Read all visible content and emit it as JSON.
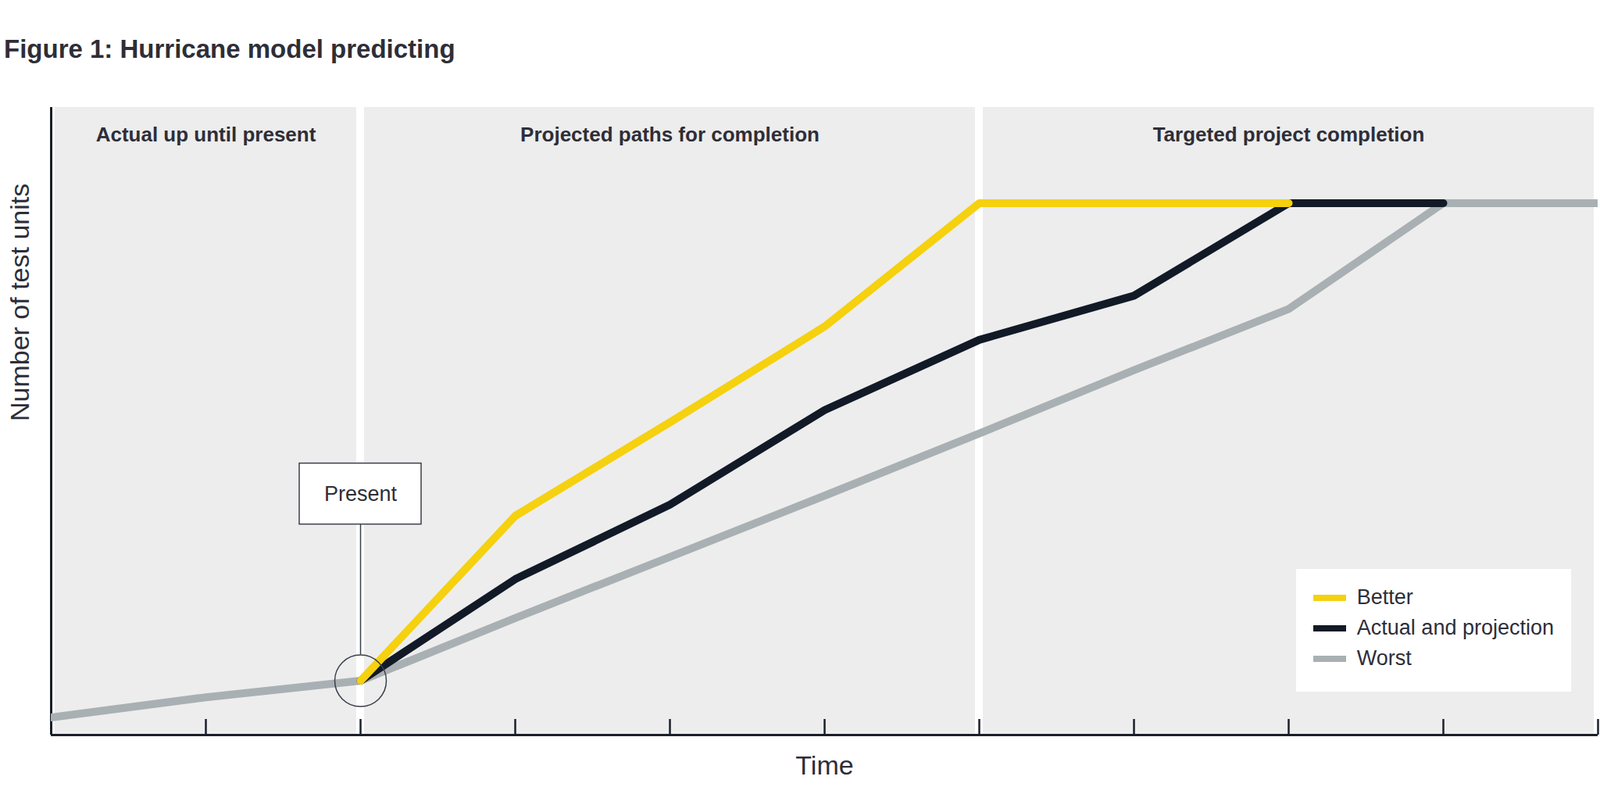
{
  "chart_data": {
    "type": "line",
    "title": "Figure 1: Hurricane model predicting",
    "x_label": "Time",
    "y_label": "Number of test units",
    "x": [
      0,
      1,
      2,
      3,
      4,
      5,
      6,
      7,
      8,
      9,
      10
    ],
    "series": [
      {
        "name": "Better",
        "color": "#f5d10f",
        "values": [
          null,
          null,
          10.2,
          41.2,
          58.8,
          76.8,
          100,
          100,
          100,
          null,
          null
        ]
      },
      {
        "name": "Actual and projection",
        "color": "#111a26",
        "values": [
          null,
          null,
          10.2,
          29.3,
          43.3,
          61.1,
          74.3,
          82.6,
          100,
          100,
          null
        ]
      },
      {
        "name": "Worst",
        "color": "#a9b0b3",
        "values": [
          3.3,
          7.1,
          10.2,
          22.0,
          33.5,
          45.0,
          56.7,
          68.6,
          80.1,
          100,
          100
        ]
      }
    ],
    "xlim": [
      0,
      10
    ],
    "xticks": [
      0,
      1,
      2,
      3,
      4,
      5,
      6,
      7,
      8,
      9,
      10
    ],
    "ylim": [
      0,
      118
    ],
    "yticks": [],
    "tick_labels": false,
    "grid": false,
    "legend": "bottom-right",
    "regions": [
      {
        "label": "Actual up until present",
        "start": 0,
        "end": 2
      },
      {
        "label": "Projected paths for completion",
        "start": 2,
        "end": 6
      },
      {
        "label": "Targeted project completion",
        "start": 6,
        "end": 10
      }
    ],
    "annotations": [
      {
        "text": "Present",
        "x": 2,
        "y": 10.2
      }
    ]
  }
}
